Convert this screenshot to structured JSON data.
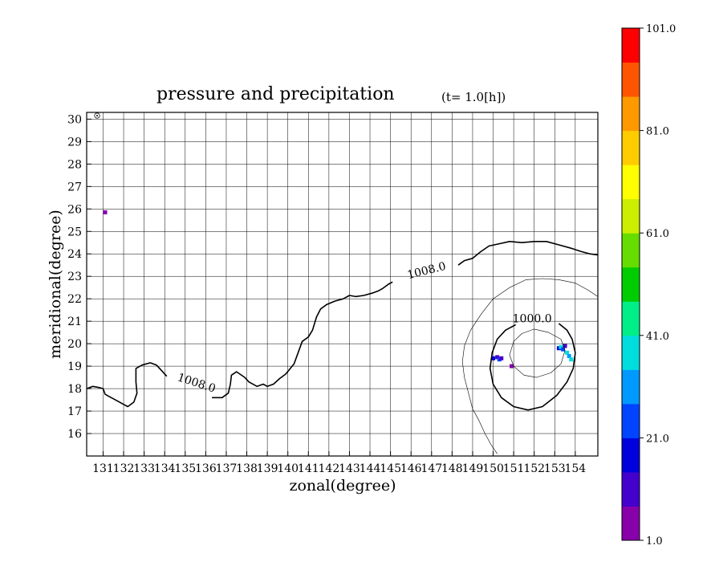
{
  "chart_data": {
    "type": "contour",
    "title": "pressure and precipitation",
    "title_subscript": "(t=   1.0[h])",
    "xlabel": "zonal(degree)",
    "ylabel": "meridional(degree)",
    "xlim": [
      130.2,
      155.1
    ],
    "ylim": [
      15.0,
      30.3
    ],
    "x_ticks": [
      131,
      132,
      133,
      134,
      135,
      136,
      137,
      138,
      139,
      140,
      141,
      142,
      143,
      144,
      145,
      146,
      147,
      148,
      149,
      150,
      151,
      152,
      153,
      154
    ],
    "x_tick_labels": [
      "131",
      "132",
      "133",
      "134",
      "135",
      "136",
      "137",
      "138",
      "139",
      "140",
      "141",
      "142",
      "143",
      "144",
      "145",
      "146",
      "147",
      "148",
      "149",
      "150",
      "151",
      "152",
      "153",
      "154"
    ],
    "y_ticks": [
      16,
      17,
      18,
      19,
      20,
      21,
      22,
      23,
      24,
      25,
      26,
      27,
      28,
      29,
      30
    ],
    "y_tick_labels": [
      "16",
      "17",
      "18",
      "19",
      "20",
      "21",
      "22",
      "23",
      "24",
      "25",
      "26",
      "27",
      "28",
      "29",
      "30"
    ],
    "grid": true,
    "contours": [
      {
        "level": "1008.0",
        "style": "thick",
        "label_positions": [
          [
            135.5,
            18.1
          ],
          [
            146.8,
            23.1
          ]
        ],
        "points": [
          [
            130.2,
            18.0
          ],
          [
            130.5,
            18.1
          ],
          [
            130.8,
            18.05
          ],
          [
            131.0,
            18.0
          ],
          [
            131.1,
            17.75
          ],
          [
            131.3,
            17.65
          ],
          [
            131.6,
            17.5
          ],
          [
            132.0,
            17.3
          ],
          [
            132.2,
            17.2
          ],
          [
            132.5,
            17.4
          ],
          [
            132.65,
            17.8
          ],
          [
            132.6,
            18.3
          ],
          [
            132.6,
            18.9
          ],
          [
            132.9,
            19.05
          ],
          [
            133.3,
            19.15
          ],
          [
            133.6,
            19.05
          ],
          [
            133.9,
            18.75
          ],
          [
            134.1,
            18.55
          ]
        ],
        "points_b": [
          [
            136.3,
            17.6
          ],
          [
            136.8,
            17.6
          ],
          [
            137.1,
            17.8
          ],
          [
            137.2,
            18.2
          ],
          [
            137.25,
            18.6
          ],
          [
            137.5,
            18.75
          ],
          [
            137.9,
            18.5
          ],
          [
            138.1,
            18.3
          ],
          [
            138.5,
            18.1
          ],
          [
            138.8,
            18.2
          ],
          [
            139.0,
            18.1
          ],
          [
            139.3,
            18.2
          ],
          [
            139.6,
            18.45
          ],
          [
            139.9,
            18.65
          ],
          [
            140.3,
            19.1
          ],
          [
            140.5,
            19.6
          ],
          [
            140.7,
            20.1
          ],
          [
            141.0,
            20.3
          ],
          [
            141.2,
            20.6
          ],
          [
            141.4,
            21.2
          ],
          [
            141.6,
            21.55
          ],
          [
            141.9,
            21.75
          ],
          [
            142.3,
            21.9
          ],
          [
            142.7,
            22.0
          ],
          [
            143.0,
            22.15
          ],
          [
            143.3,
            22.1
          ],
          [
            143.7,
            22.15
          ],
          [
            144.1,
            22.25
          ],
          [
            144.4,
            22.35
          ],
          [
            144.6,
            22.45
          ],
          [
            144.9,
            22.65
          ],
          [
            145.1,
            22.75
          ]
        ],
        "points_c": [
          [
            148.3,
            23.5
          ],
          [
            148.6,
            23.7
          ],
          [
            149.0,
            23.8
          ],
          [
            149.4,
            24.1
          ],
          [
            149.8,
            24.35
          ],
          [
            150.3,
            24.45
          ],
          [
            150.8,
            24.55
          ],
          [
            151.4,
            24.5
          ],
          [
            152.0,
            24.55
          ],
          [
            152.6,
            24.55
          ],
          [
            153.2,
            24.4
          ],
          [
            153.8,
            24.25
          ],
          [
            154.3,
            24.1
          ],
          [
            154.7,
            24.0
          ],
          [
            155.1,
            23.95
          ]
        ]
      },
      {
        "level": "1000.0",
        "style": "thick",
        "label_positions": [
          [
            151.9,
            20.95
          ]
        ],
        "points": [
          [
            153.2,
            20.9
          ],
          [
            153.6,
            20.6
          ],
          [
            153.85,
            20.2
          ],
          [
            154.0,
            19.6
          ],
          [
            153.9,
            18.9
          ],
          [
            153.6,
            18.3
          ],
          [
            153.1,
            17.7
          ],
          [
            152.4,
            17.2
          ],
          [
            151.7,
            17.05
          ],
          [
            151.0,
            17.2
          ],
          [
            150.4,
            17.6
          ],
          [
            150.0,
            18.2
          ],
          [
            149.85,
            18.9
          ],
          [
            149.95,
            19.6
          ],
          [
            150.2,
            20.2
          ],
          [
            150.6,
            20.6
          ],
          [
            151.1,
            20.85
          ]
        ]
      },
      {
        "level": "",
        "style": "thin",
        "points": [
          [
            155.1,
            22.1
          ],
          [
            154.6,
            22.4
          ],
          [
            154.0,
            22.7
          ],
          [
            153.2,
            22.85
          ],
          [
            152.4,
            22.9
          ],
          [
            151.6,
            22.85
          ],
          [
            150.8,
            22.5
          ],
          [
            150.0,
            22.0
          ],
          [
            149.4,
            21.3
          ],
          [
            148.9,
            20.6
          ],
          [
            148.6,
            19.9
          ],
          [
            148.5,
            19.2
          ],
          [
            148.6,
            18.5
          ],
          [
            148.8,
            17.8
          ],
          [
            149.0,
            17.1
          ],
          [
            149.3,
            16.6
          ],
          [
            149.6,
            16.0
          ],
          [
            149.9,
            15.5
          ],
          [
            150.2,
            15.1
          ]
        ]
      },
      {
        "level": "",
        "style": "thin",
        "points": [
          [
            152.0,
            20.65
          ],
          [
            152.7,
            20.5
          ],
          [
            153.3,
            20.2
          ],
          [
            153.5,
            19.7
          ],
          [
            153.3,
            19.1
          ],
          [
            152.8,
            18.7
          ],
          [
            152.1,
            18.5
          ],
          [
            151.5,
            18.6
          ],
          [
            151.0,
            19.0
          ],
          [
            150.8,
            19.5
          ],
          [
            151.0,
            20.1
          ],
          [
            151.4,
            20.45
          ],
          [
            152.0,
            20.65
          ]
        ]
      }
    ],
    "precipitation_cells": [
      {
        "x": 150.0,
        "y": 19.35,
        "value": 18
      },
      {
        "x": 150.2,
        "y": 19.4,
        "value": 14
      },
      {
        "x": 150.3,
        "y": 19.3,
        "value": 24
      },
      {
        "x": 150.4,
        "y": 19.35,
        "value": 11
      },
      {
        "x": 150.9,
        "y": 19.0,
        "value": 6
      },
      {
        "x": 153.2,
        "y": 19.8,
        "value": 16
      },
      {
        "x": 153.3,
        "y": 19.85,
        "value": 36
      },
      {
        "x": 153.4,
        "y": 19.75,
        "value": 22
      },
      {
        "x": 153.5,
        "y": 19.9,
        "value": 12
      },
      {
        "x": 153.6,
        "y": 19.6,
        "value": 38
      },
      {
        "x": 153.7,
        "y": 19.45,
        "value": 30
      },
      {
        "x": 153.8,
        "y": 19.3,
        "value": 40
      },
      {
        "x": 131.1,
        "y": 25.85,
        "value": 1
      }
    ],
    "colorbar": {
      "min": 1.0,
      "max": 101.0,
      "tick_values": [
        1.0,
        21.0,
        41.0,
        61.0,
        81.0,
        101.0
      ],
      "tick_labels": [
        "1.0",
        "21.0",
        "41.0",
        "61.0",
        "81.0",
        "101.0"
      ],
      "colors": [
        "#8800aa",
        "#4400cc",
        "#0000dd",
        "#0044ff",
        "#0099ff",
        "#00dddd",
        "#00ee88",
        "#00cc00",
        "#66dd00",
        "#ccee00",
        "#ffff00",
        "#ffcc00",
        "#ff9900",
        "#ff5500",
        "#ff0000"
      ]
    }
  }
}
